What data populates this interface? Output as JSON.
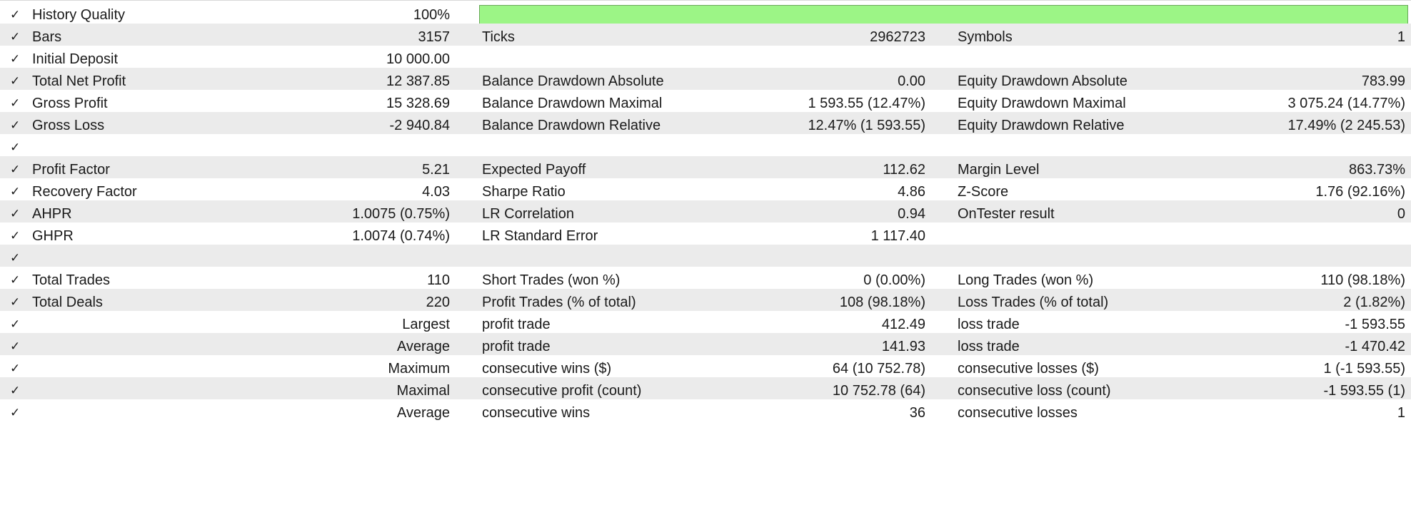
{
  "report": {
    "accent_bar_color": "#9cf586",
    "history_quality_fill": 1.0,
    "rows": [
      {
        "c1": "History Quality",
        "v1": "100%",
        "c2": "",
        "v2": "",
        "c3": "",
        "v3": ""
      },
      {
        "c1": "Bars",
        "v1": "3157",
        "c2": "Ticks",
        "v2": "2962723",
        "c3": "Symbols",
        "v3": "1"
      },
      {
        "c1": "Initial Deposit",
        "v1": "10 000.00",
        "c2": "",
        "v2": "",
        "c3": "",
        "v3": ""
      },
      {
        "c1": "Total Net Profit",
        "v1": "12 387.85",
        "c2": "Balance Drawdown Absolute",
        "v2": "0.00",
        "c3": "Equity Drawdown Absolute",
        "v3": "783.99"
      },
      {
        "c1": "Gross Profit",
        "v1": "15 328.69",
        "c2": "Balance Drawdown Maximal",
        "v2": "1 593.55 (12.47%)",
        "c3": "Equity Drawdown Maximal",
        "v3": "3 075.24 (14.77%)"
      },
      {
        "c1": "Gross Loss",
        "v1": "-2 940.84",
        "c2": "Balance Drawdown Relative",
        "v2": "12.47% (1 593.55)",
        "c3": "Equity Drawdown Relative",
        "v3": "17.49% (2 245.53)"
      },
      {
        "c1": "",
        "v1": "",
        "c2": "",
        "v2": "",
        "c3": "",
        "v3": ""
      },
      {
        "c1": "Profit Factor",
        "v1": "5.21",
        "c2": "Expected Payoff",
        "v2": "112.62",
        "c3": "Margin Level",
        "v3": "863.73%"
      },
      {
        "c1": "Recovery Factor",
        "v1": "4.03",
        "c2": "Sharpe Ratio",
        "v2": "4.86",
        "c3": "Z-Score",
        "v3": "1.76 (92.16%)"
      },
      {
        "c1": "AHPR",
        "v1": "1.0075 (0.75%)",
        "c2": "LR Correlation",
        "v2": "0.94",
        "c3": "OnTester result",
        "v3": "0"
      },
      {
        "c1": "GHPR",
        "v1": "1.0074 (0.74%)",
        "c2": "LR Standard Error",
        "v2": "1 117.40",
        "c3": "",
        "v3": ""
      },
      {
        "c1": "",
        "v1": "",
        "c2": "",
        "v2": "",
        "c3": "",
        "v3": ""
      },
      {
        "c1": "Total Trades",
        "v1": "110",
        "c2": "Short Trades (won %)",
        "v2": "0 (0.00%)",
        "c3": "Long Trades (won %)",
        "v3": "110 (98.18%)"
      },
      {
        "c1": "Total Deals",
        "v1": "220",
        "c2": "Profit Trades (% of total)",
        "v2": "108 (98.18%)",
        "c3": "Loss Trades (% of total)",
        "v3": "2 (1.82%)"
      },
      {
        "c1": "",
        "v1": "Largest",
        "c2": "profit trade",
        "v2": "412.49",
        "c3": "loss trade",
        "v3": "-1 593.55"
      },
      {
        "c1": "",
        "v1": "Average",
        "c2": "profit trade",
        "v2": "141.93",
        "c3": "loss trade",
        "v3": "-1 470.42"
      },
      {
        "c1": "",
        "v1": "Maximum",
        "c2": "consecutive wins ($)",
        "v2": "64 (10 752.78)",
        "c3": "consecutive losses ($)",
        "v3": "1 (-1 593.55)"
      },
      {
        "c1": "",
        "v1": "Maximal",
        "c2": "consecutive profit (count)",
        "v2": "10 752.78 (64)",
        "c3": "consecutive loss (count)",
        "v3": "-1 593.55 (1)"
      },
      {
        "c1": "",
        "v1": "Average",
        "c2": "consecutive wins",
        "v2": "36",
        "c3": "consecutive losses",
        "v3": "1"
      }
    ],
    "check_glyph": "✓"
  }
}
